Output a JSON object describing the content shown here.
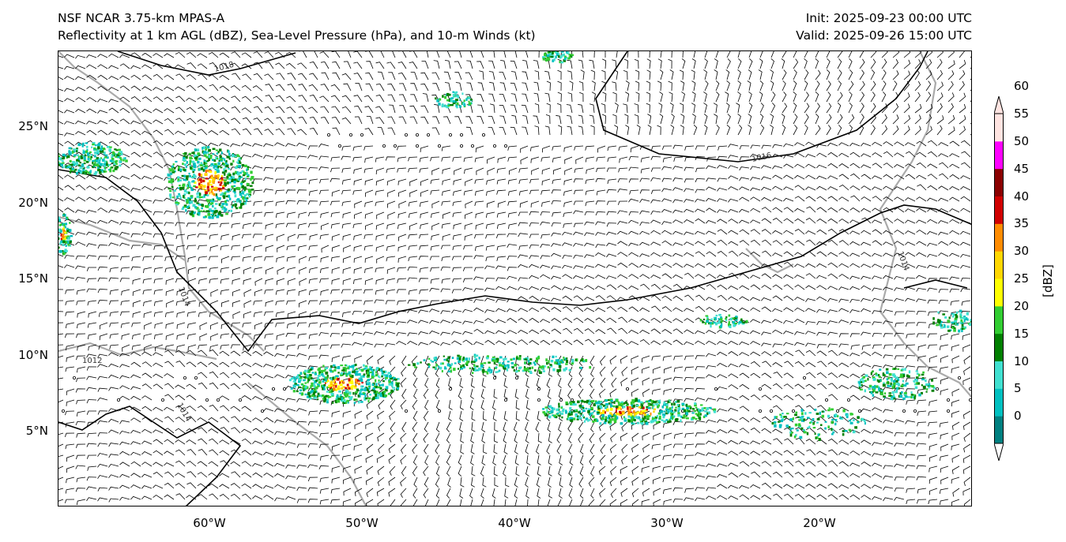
{
  "title": {
    "line1": "NSF NCAR 3.75-km MPAS-A",
    "line2": "Reflectivity at 1 km AGL (dBZ), Sea-Level Pressure (hPa), and 10-m Winds (kt)",
    "init": "Init: 2025-09-23 00:00 UTC",
    "valid": "Valid: 2025-09-26 15:00 UTC"
  },
  "map": {
    "lat_ticks": [
      "25°N",
      "20°N",
      "15°N",
      "10°N",
      "5°N"
    ],
    "lon_ticks": [
      "60°W",
      "50°W",
      "40°W",
      "30°W",
      "20°W"
    ],
    "isobar_labels": [
      "1018",
      "1016",
      "1014",
      "1012",
      "1014",
      "1014"
    ]
  },
  "colorbar": {
    "label": "[dBZ]",
    "ticks": [
      "0",
      "5",
      "10",
      "15",
      "20",
      "25",
      "30",
      "35",
      "40",
      "45",
      "50",
      "55",
      "60"
    ],
    "colors": [
      "#ffffff",
      "#008080",
      "#00c0c0",
      "#40e0d0",
      "#008000",
      "#32cd32",
      "#ffff00",
      "#ffd700",
      "#ff8c00",
      "#d00000",
      "#8b0000",
      "#ff00ff",
      "#ffe4e1"
    ]
  }
}
